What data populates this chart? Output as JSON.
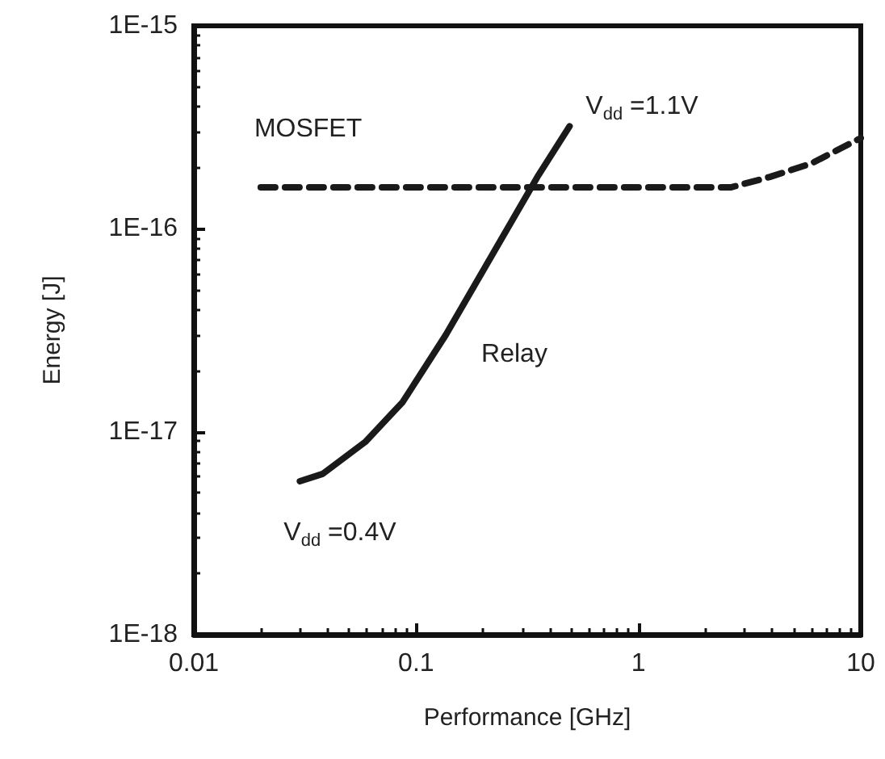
{
  "chart_data": {
    "type": "line",
    "xlabel": "Performance [GHz]",
    "ylabel": "Energy [J]",
    "log": "xy",
    "grid": false,
    "legend": false,
    "marker": "none",
    "xlim": [
      0.01,
      10
    ],
    "xticks": [
      0.01,
      0.1,
      1,
      10
    ],
    "ylim": [
      1e-18,
      1e-15
    ],
    "yticks": [
      {
        "value": 1e-18,
        "label": "1E-18"
      },
      {
        "value": 1e-17,
        "label": "1E-17"
      },
      {
        "value": 1e-16,
        "label": "1E-16"
      },
      {
        "value": 1e-15,
        "label": "1E-15"
      }
    ],
    "series": [
      {
        "name": "Relay",
        "color": "#1a1a1a",
        "line_style": "solid",
        "x": [
          0.03,
          0.038,
          0.059,
          0.087,
          0.136,
          0.213,
          0.351,
          0.49
        ],
        "values": [
          5.7e-18,
          6.2e-18,
          8.9e-18,
          1.4e-17,
          3e-17,
          7e-17,
          1.8e-16,
          3.2e-16
        ]
      },
      {
        "name": "MOSFET",
        "color": "#1a1a1a",
        "line_style": "dashed",
        "x": [
          0.02,
          0.1,
          1,
          2.6,
          3.9,
          6,
          10
        ],
        "values": [
          1.6e-16,
          1.6e-16,
          1.6e-16,
          1.6e-16,
          1.8e-16,
          2.1e-16,
          2.8e-16
        ]
      }
    ],
    "annotations": [
      {
        "text": "V$_{dd}$ =1.1V",
        "x": 0.49,
        "y": 3.2e-16
      },
      {
        "text": "V$_{dd}$ =0.4V",
        "x": 0.03,
        "y": 5.7e-18
      }
    ]
  }
}
